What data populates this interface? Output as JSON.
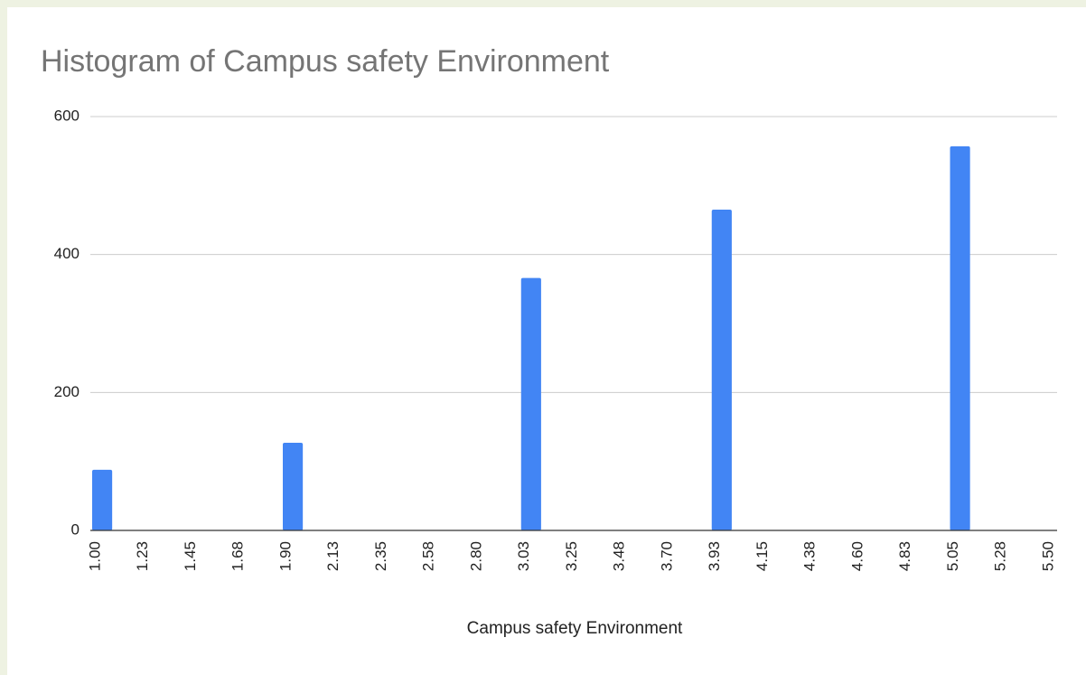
{
  "chart_data": {
    "type": "histogram",
    "title": "Histogram of Campus safety Environment",
    "x_label": "Campus safety Environment",
    "bins": [
      1.0,
      1.225,
      1.45,
      1.675,
      1.9,
      2.125,
      2.35,
      2.575,
      2.8,
      3.025,
      3.25,
      3.475,
      3.7,
      3.925,
      4.15,
      4.375,
      4.6,
      4.825,
      5.05,
      5.275,
      5.5
    ],
    "values": [
      88,
      0,
      0,
      0,
      127,
      0,
      0,
      0,
      0,
      366,
      0,
      0,
      0,
      465,
      0,
      0,
      0,
      0,
      557,
      0
    ],
    "color": "#4285f4",
    "xlim": [
      1.0,
      5.5
    ],
    "xticks": [
      {
        "value": 1.0,
        "label": "1.00"
      },
      {
        "value": 1.225,
        "label": "1.23"
      },
      {
        "value": 1.45,
        "label": "1.45"
      },
      {
        "value": 1.675,
        "label": "1.68"
      },
      {
        "value": 1.9,
        "label": "1.90"
      },
      {
        "value": 2.125,
        "label": "2.13"
      },
      {
        "value": 2.35,
        "label": "2.35"
      },
      {
        "value": 2.575,
        "label": "2.58"
      },
      {
        "value": 2.8,
        "label": "2.80"
      },
      {
        "value": 3.025,
        "label": "3.03"
      },
      {
        "value": 3.25,
        "label": "3.25"
      },
      {
        "value": 3.475,
        "label": "3.48"
      },
      {
        "value": 3.7,
        "label": "3.70"
      },
      {
        "value": 3.925,
        "label": "3.93"
      },
      {
        "value": 4.15,
        "label": "4.15"
      },
      {
        "value": 4.375,
        "label": "4.38"
      },
      {
        "value": 4.6,
        "label": "4.60"
      },
      {
        "value": 4.825,
        "label": "4.83"
      },
      {
        "value": 5.05,
        "label": "5.05"
      },
      {
        "value": 5.275,
        "label": "5.28"
      },
      {
        "value": 5.5,
        "label": "5.50"
      }
    ],
    "ylim": [
      0,
      600
    ],
    "yticks": [
      0,
      200,
      400,
      600
    ],
    "grid": true
  }
}
